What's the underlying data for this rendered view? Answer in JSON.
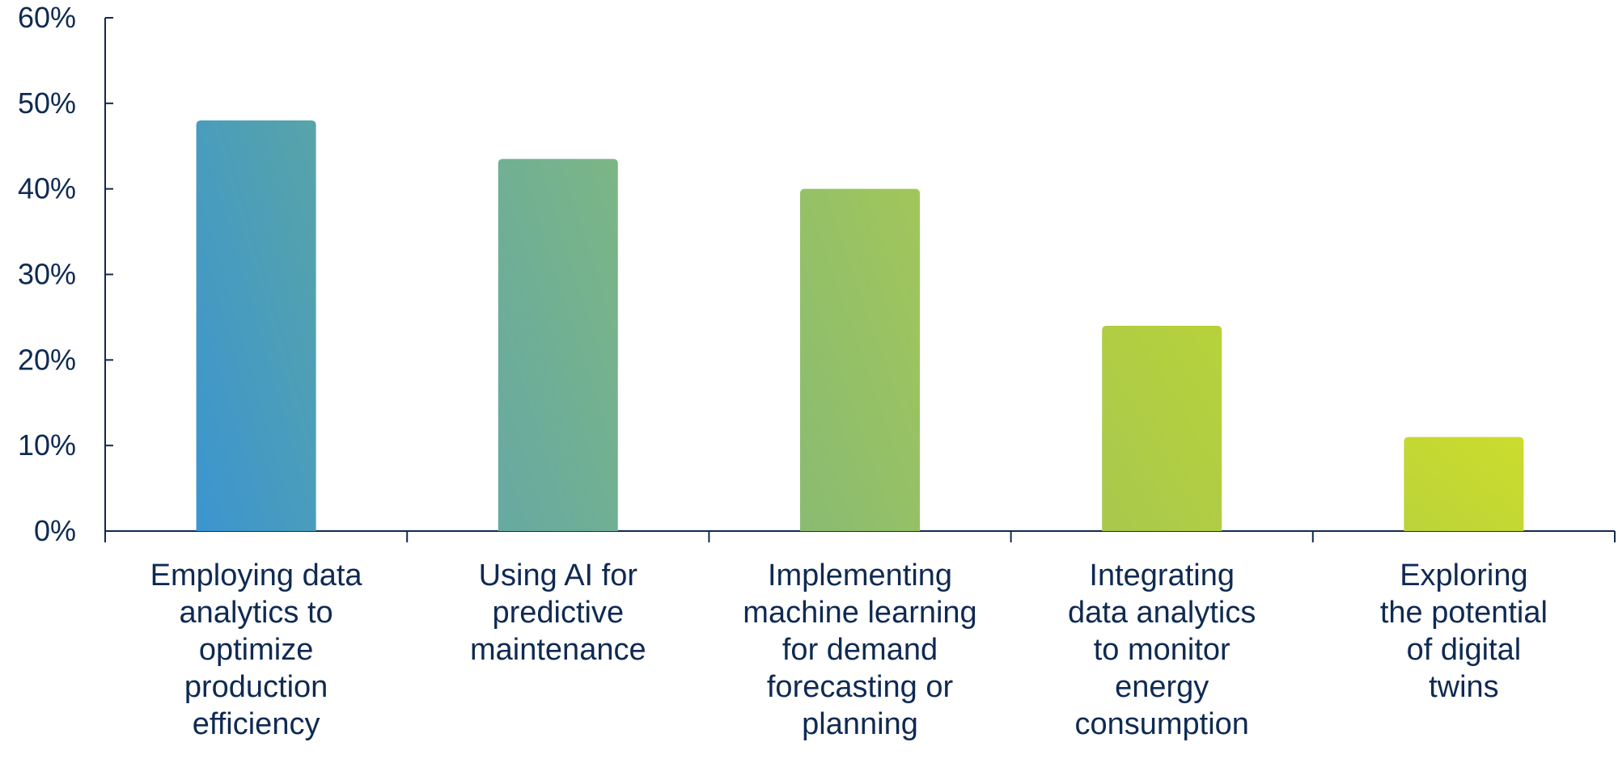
{
  "chart_data": {
    "type": "bar",
    "title": "",
    "xlabel": "",
    "ylabel": "",
    "ylim": [
      0,
      60
    ],
    "yticks": [
      "0%",
      "10%",
      "20%",
      "30%",
      "40%",
      "50%",
      "60%"
    ],
    "grid": false,
    "categories": [
      [
        "Employing data",
        "analytics to",
        "optimize",
        "production",
        "efficiency"
      ],
      [
        "Using AI for",
        "predictive",
        "maintenance"
      ],
      [
        "Implementing",
        "machine learning",
        "for demand",
        "forecasting or",
        "planning"
      ],
      [
        "Integrating",
        "data analytics",
        "to monitor",
        "energy",
        "consumption"
      ],
      [
        "Exploring",
        "the potential",
        "of digital",
        "twins"
      ]
    ],
    "values": [
      48,
      43.5,
      40,
      24,
      11
    ],
    "colors": [
      [
        "#3b95d0",
        "#58a4a8"
      ],
      [
        "#66a9a2",
        "#7cb685"
      ],
      [
        "#89bb72",
        "#a1c65a"
      ],
      [
        "#a8c84e",
        "#b7d23a"
      ],
      [
        "#bcd43a",
        "#cbdc2c"
      ]
    ],
    "text_color": "#0f2a52"
  }
}
